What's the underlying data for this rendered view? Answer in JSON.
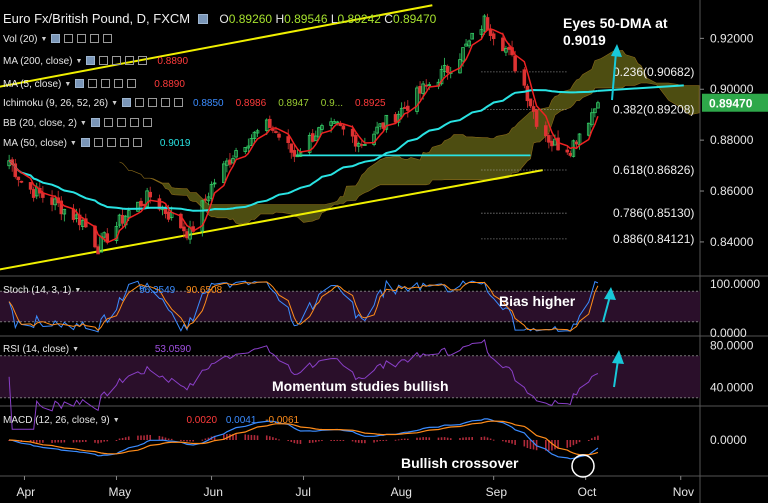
{
  "header": {
    "title": "Euro Fx/British Pound, D, FXCM",
    "ohlc": [
      {
        "k": "O",
        "v": "0.89260"
      },
      {
        "k": "H",
        "v": "0.89546"
      },
      {
        "k": "L",
        "v": "0.89242"
      },
      {
        "k": "C",
        "v": "0.89470"
      }
    ]
  },
  "indicators_main": [
    {
      "label": "Vol (20)",
      "values": []
    },
    {
      "label": "MA (200, close)",
      "values": [
        {
          "text": "0.8890",
          "color": "#ff3b3b"
        }
      ]
    },
    {
      "label": "MA (5, close)",
      "values": [
        {
          "text": "0.8890",
          "color": "#ff3b3b"
        }
      ]
    },
    {
      "label": "Ichimoku (9, 26, 52, 26)",
      "values": [
        {
          "text": "0.8850",
          "color": "#3b8cff"
        },
        {
          "text": "0.8986",
          "color": "#ff3b3b"
        },
        {
          "text": "0.8947",
          "color": "#9acd32"
        },
        {
          "text": "0.9...",
          "color": "#9acd32"
        },
        {
          "text": "0.8925",
          "color": "#ff3b3b"
        }
      ]
    },
    {
      "label": "BB (20, close, 2)",
      "values": []
    },
    {
      "label": "MA (50, close)",
      "values": [
        {
          "text": "0.9019",
          "color": "#29e3e3"
        }
      ]
    }
  ],
  "panes": {
    "stoch": {
      "label": "Stoch (14, 3, 1)",
      "values": [
        {
          "text": "96.3549",
          "color": "#3b8cff"
        },
        {
          "text": "90.6508",
          "color": "#ff8c1a"
        }
      ]
    },
    "rsi": {
      "label": "RSI (14, close)",
      "values": [
        {
          "text": "53.0590",
          "color": "#a050e0"
        }
      ]
    },
    "macd": {
      "label": "MACD (12, 26, close, 9)",
      "values": [
        {
          "text": "0.0020",
          "color": "#ff3b3b"
        },
        {
          "text": "0.0041",
          "color": "#3b8cff"
        },
        {
          "text": "-0.0061",
          "color": "#ff8c1a"
        }
      ]
    }
  },
  "annotations": {
    "eyes": "Eyes 50-DMA at 0.9019",
    "fib": [
      "0.236(0.90682)",
      "0.382(0.89208)",
      "0.618(0.86826)",
      "0.786(0.85130)",
      "0.886(0.84121)"
    ],
    "bias": "Bias higher",
    "momentum": "Momentum studies bullish",
    "crossover": "Bullish crossover"
  },
  "colors": {
    "background": "#000000",
    "bull": "#33cc66",
    "bear": "#dd3333",
    "trendline": "#f0f000",
    "ma50": "#29e3e3",
    "ma5": "#ee2222",
    "cloud": "#5a5a14",
    "price_tag": "#2ea84a",
    "stoch_k": "#3b8cff",
    "stoch_d": "#ff8c1a",
    "rsi": "#8a3fc8",
    "band_fill": "#2a0f2a",
    "arrow": "#18c8d8"
  },
  "chart_data": {
    "type": "candlestick",
    "title": "Euro Fx/British Pound, D, FXCM",
    "x_ticks": [
      "Apr",
      "May",
      "Jun",
      "Jul",
      "Aug",
      "Sep",
      "Oct",
      "Nov"
    ],
    "price_axis": {
      "ticks": [
        "0.92000",
        "0.90000",
        "0.88000",
        "0.86000",
        "0.84000"
      ],
      "last_price": "0.89470"
    },
    "stoch_axis": [
      "100.0000",
      "0.0000"
    ],
    "rsi_axis": [
      "80.0000",
      "40.0000"
    ],
    "macd_axis": [
      "0.0000"
    ],
    "price_path": [
      {
        "x": "Mar-25",
        "y": 0.876
      },
      {
        "x": "Apr-01",
        "y": 0.862
      },
      {
        "x": "Apr-10",
        "y": 0.856
      },
      {
        "x": "Apr-20",
        "y": 0.848
      },
      {
        "x": "Apr-25",
        "y": 0.838
      },
      {
        "x": "May-05",
        "y": 0.852
      },
      {
        "x": "May-12",
        "y": 0.858
      },
      {
        "x": "May-18",
        "y": 0.851
      },
      {
        "x": "May-25",
        "y": 0.843
      },
      {
        "x": "Jun-01",
        "y": 0.862
      },
      {
        "x": "Jun-10",
        "y": 0.878
      },
      {
        "x": "Jun-20",
        "y": 0.886
      },
      {
        "x": "Jun-28",
        "y": 0.874
      },
      {
        "x": "Jul-05",
        "y": 0.883
      },
      {
        "x": "Jul-12",
        "y": 0.885
      },
      {
        "x": "Jul-20",
        "y": 0.879
      },
      {
        "x": "Jul-27",
        "y": 0.886
      },
      {
        "x": "Aug-03",
        "y": 0.893
      },
      {
        "x": "Aug-10",
        "y": 0.901
      },
      {
        "x": "Aug-17",
        "y": 0.908
      },
      {
        "x": "Aug-24",
        "y": 0.918
      },
      {
        "x": "Aug-29",
        "y": 0.9268
      },
      {
        "x": "Sep-04",
        "y": 0.918
      },
      {
        "x": "Sep-10",
        "y": 0.905
      },
      {
        "x": "Sep-15",
        "y": 0.888
      },
      {
        "x": "Sep-20",
        "y": 0.879
      },
      {
        "x": "Sep-26",
        "y": 0.877
      },
      {
        "x": "Oct-02",
        "y": 0.889
      },
      {
        "x": "Oct-05",
        "y": 0.8947
      }
    ],
    "fib_levels": [
      {
        "label": "0.236",
        "value": 0.90682
      },
      {
        "label": "0.382",
        "value": 0.89208
      },
      {
        "label": "0.618",
        "value": 0.86826
      },
      {
        "label": "0.786",
        "value": 0.8513
      },
      {
        "label": "0.886",
        "value": 0.84121
      }
    ],
    "ma50_value": 0.9019,
    "support_level": 0.874,
    "stoch": {
      "k": 96.3549,
      "d": 90.6508
    },
    "rsi": 53.059,
    "macd": {
      "hist": 0.002,
      "macd": 0.0041,
      "signal": -0.0061
    }
  }
}
